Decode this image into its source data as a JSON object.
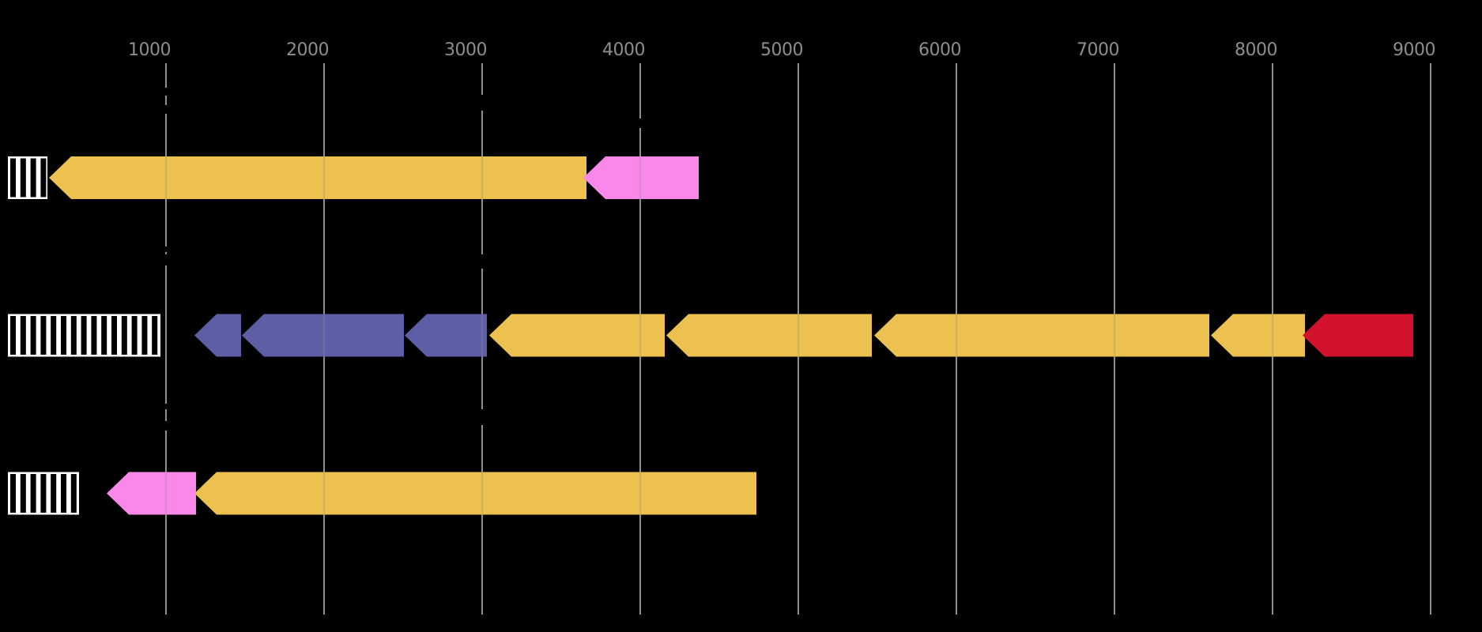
{
  "chart_data": {
    "type": "gene-arrow-map",
    "title": "",
    "axis": {
      "unit": "bp",
      "xlim": [
        -50,
        9325
      ],
      "tick_values": [
        1000,
        2000,
        3000,
        4000,
        5000,
        6000,
        7000,
        8000,
        9000
      ],
      "tick_labels": [
        "1000",
        "2000",
        "3000",
        "4000",
        "5000",
        "6000",
        "7000",
        "8000",
        "9000"
      ],
      "grid": true,
      "gridline_color": "#8f8f8f",
      "tick_label_color": "#8e8e8e"
    },
    "colors": {
      "gold": "#ecc14f",
      "blue": "#5c5ea6",
      "pink": "#f988e9",
      "red": "#d2122c",
      "hatch_bg": "#ffffff",
      "hatch_stripe": "#000000",
      "background": "#000000"
    },
    "tracks": [
      {
        "name": "track-1",
        "features": [
          {
            "kind": "hatched-block",
            "start": 0,
            "end": 250
          },
          {
            "kind": "gene-arrow",
            "start": 260,
            "end": 3660,
            "strand": "-",
            "color_key": "gold"
          },
          {
            "kind": "gene-arrow",
            "start": 3640,
            "end": 4370,
            "strand": "-",
            "color_key": "pink"
          }
        ]
      },
      {
        "name": "track-2",
        "features": [
          {
            "kind": "hatched-block",
            "start": 0,
            "end": 965
          },
          {
            "kind": "gene-arrow",
            "start": 1180,
            "end": 1475,
            "strand": "-",
            "color_key": "blue"
          },
          {
            "kind": "gene-arrow",
            "start": 1480,
            "end": 2505,
            "strand": "-",
            "color_key": "blue"
          },
          {
            "kind": "gene-arrow",
            "start": 2510,
            "end": 3030,
            "strand": "-",
            "color_key": "blue"
          },
          {
            "kind": "gene-arrow",
            "start": 3045,
            "end": 4155,
            "strand": "-",
            "color_key": "gold"
          },
          {
            "kind": "gene-arrow",
            "start": 4165,
            "end": 5465,
            "strand": "-",
            "color_key": "gold"
          },
          {
            "kind": "gene-arrow",
            "start": 5480,
            "end": 7600,
            "strand": "-",
            "color_key": "gold"
          },
          {
            "kind": "gene-arrow",
            "start": 7610,
            "end": 8205,
            "strand": "-",
            "color_key": "gold"
          },
          {
            "kind": "gene-arrow",
            "start": 8190,
            "end": 8890,
            "strand": "-",
            "color_key": "red"
          }
        ]
      },
      {
        "name": "track-3",
        "features": [
          {
            "kind": "hatched-block",
            "start": 0,
            "end": 450
          },
          {
            "kind": "gene-arrow",
            "start": 625,
            "end": 1190,
            "strand": "-",
            "color_key": "pink"
          },
          {
            "kind": "gene-arrow",
            "start": 1180,
            "end": 4735,
            "strand": "-",
            "color_key": "gold"
          }
        ]
      }
    ],
    "hidden_label_artifacts": [
      {
        "tick": 1000,
        "y_segments": [
          [
            111,
            121
          ],
          [
            133,
            144
          ]
        ]
      },
      {
        "tick": 3000,
        "y_segments": [
          [
            120,
            140
          ]
        ]
      },
      {
        "tick": 4000,
        "y_segments": [
          [
            150,
            162
          ]
        ]
      },
      {
        "tick": 1000,
        "y_segments": [
          [
            312,
            319
          ],
          [
            322,
            336
          ]
        ]
      },
      {
        "tick": 3000,
        "y_segments": [
          [
            322,
            340
          ]
        ]
      },
      {
        "tick": 1000,
        "y_segments": [
          [
            511,
            518
          ],
          [
            533,
            545
          ]
        ]
      },
      {
        "tick": 3000,
        "y_segments": [
          [
            518,
            538
          ]
        ]
      }
    ]
  }
}
